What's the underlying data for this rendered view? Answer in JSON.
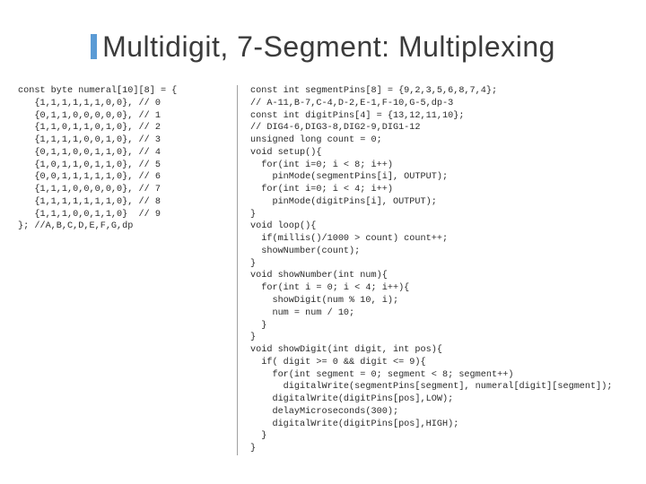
{
  "title": "Multidigit, 7-Segment: Multiplexing",
  "code_left": "const byte numeral[10][8] = {\n   {1,1,1,1,1,1,0,0}, // 0\n   {0,1,1,0,0,0,0,0}, // 1\n   {1,1,0,1,1,0,1,0}, // 2\n   {1,1,1,1,0,0,1,0}, // 3\n   {0,1,1,0,0,1,1,0}, // 4\n   {1,0,1,1,0,1,1,0}, // 5\n   {0,0,1,1,1,1,1,0}, // 6\n   {1,1,1,0,0,0,0,0}, // 7\n   {1,1,1,1,1,1,1,0}, // 8\n   {1,1,1,0,0,1,1,0}  // 9\n}; //A,B,C,D,E,F,G,dp",
  "code_right": "const int segmentPins[8] = {9,2,3,5,6,8,7,4};\n// A-11,B-7,C-4,D-2,E-1,F-10,G-5,dp-3\nconst int digitPins[4] = {13,12,11,10};\n// DIG4-6,DIG3-8,DIG2-9,DIG1-12\nunsigned long count = 0;\nvoid setup(){\n  for(int i=0; i < 8; i++)\n    pinMode(segmentPins[i], OUTPUT);\n  for(int i=0; i < 4; i++)\n    pinMode(digitPins[i], OUTPUT);\n}\nvoid loop(){\n  if(millis()/1000 > count) count++;\n  showNumber(count);\n}\nvoid showNumber(int num){\n  for(int i = 0; i < 4; i++){\n    showDigit(num % 10, i);\n    num = num / 10;\n  }\n}\nvoid showDigit(int digit, int pos){\n  if( digit >= 0 && digit <= 9){\n    for(int segment = 0; segment < 8; segment++)\n      digitalWrite(segmentPins[segment], numeral[digit][segment]);\n    digitalWrite(digitPins[pos],LOW);\n    delayMicroseconds(300);\n    digitalWrite(digitPins[pos],HIGH);\n  }\n}"
}
